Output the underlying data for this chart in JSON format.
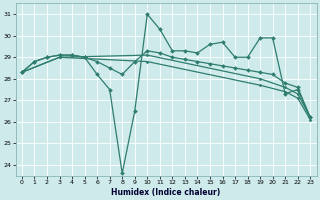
{
  "xlabel": "Humidex (Indice chaleur)",
  "xlim": [
    -0.5,
    23.5
  ],
  "ylim": [
    23.5,
    31.5
  ],
  "yticks": [
    24,
    25,
    26,
    27,
    28,
    29,
    30,
    31
  ],
  "xticks": [
    0,
    1,
    2,
    3,
    4,
    5,
    6,
    7,
    8,
    9,
    10,
    11,
    12,
    13,
    14,
    15,
    16,
    17,
    18,
    19,
    20,
    21,
    22,
    23
  ],
  "background_color": "#ceeaea",
  "grid_color": "#ffffff",
  "line_color": "#2e7d6e",
  "line1_x": [
    0,
    1,
    2,
    3,
    4,
    5,
    6,
    7,
    8,
    9,
    10,
    11,
    12,
    13,
    14,
    15,
    16,
    17,
    18,
    19,
    20,
    21,
    22,
    23
  ],
  "line1_y": [
    28.3,
    28.8,
    29.0,
    29.1,
    29.1,
    29.0,
    28.2,
    27.5,
    23.6,
    26.5,
    31.0,
    30.3,
    29.3,
    29.3,
    29.2,
    29.6,
    29.7,
    29.0,
    29.0,
    29.9,
    29.9,
    27.3,
    27.5,
    26.2
  ],
  "line2_x": [
    0,
    1,
    2,
    3,
    4,
    5,
    6,
    7,
    8,
    9,
    10,
    11,
    12,
    13,
    14,
    15,
    16,
    17,
    18,
    19,
    20,
    21,
    22,
    23
  ],
  "line2_y": [
    28.3,
    28.8,
    29.0,
    29.1,
    29.1,
    29.0,
    28.8,
    28.5,
    28.2,
    28.8,
    29.3,
    29.2,
    29.0,
    28.9,
    28.8,
    28.7,
    28.6,
    28.5,
    28.4,
    28.3,
    28.2,
    27.8,
    27.6,
    26.2
  ],
  "line3_x": [
    0,
    3,
    10,
    19,
    21,
    22,
    23
  ],
  "line3_y": [
    28.3,
    29.0,
    29.1,
    28.0,
    27.6,
    27.3,
    26.2
  ],
  "line4_x": [
    0,
    3,
    10,
    19,
    21,
    22,
    23
  ],
  "line4_y": [
    28.3,
    29.0,
    28.8,
    27.7,
    27.4,
    27.1,
    26.1
  ]
}
